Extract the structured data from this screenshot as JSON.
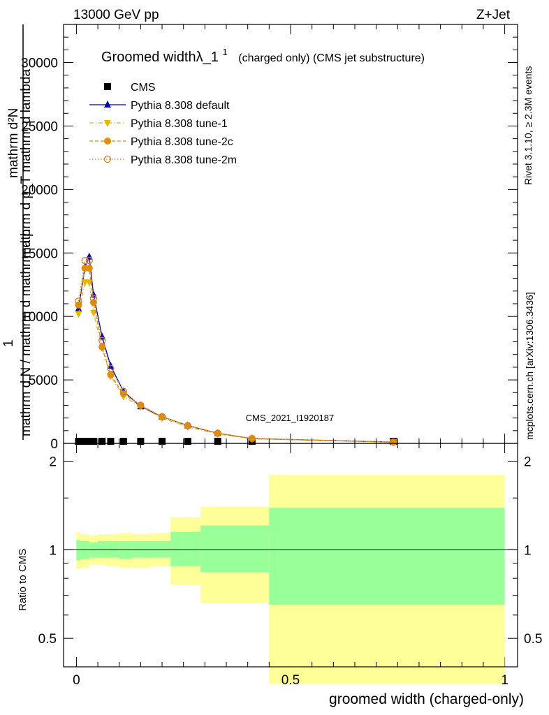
{
  "header": {
    "energy_label": "13000 GeV pp",
    "process_label": "Z+Jet"
  },
  "side_labels": {
    "rivet": "Rivet 3.1.10, ≥ 2.3M events",
    "mcplots": "mcplots.cern.ch [arXiv:1306.3436]"
  },
  "watermark": "CMS_2021_I1920187",
  "title": {
    "main": "Groomed widthλ_1",
    "superscript": "1",
    "suffix": "(charged only) (CMS jet substructure)"
  },
  "axes": {
    "ylabel_top_line1": "mathrm d²N",
    "ylabel_top_line2": "mathrm d p_T mathrm d lambda",
    "ylabel_bottom": "mathrm d N / mathrm d mathrm d p",
    "ylabel_one": "1",
    "ratio_ylabel": "Ratio to CMS",
    "xlabel": "groomed width (charged-only)",
    "main_yticks": [
      "0",
      "5000",
      "10000",
      "15000",
      "20000",
      "25000",
      "30000"
    ],
    "ratio_yticks": [
      "0.5",
      "1",
      "2"
    ],
    "xticks": [
      "0",
      "0.5",
      "1"
    ]
  },
  "legend": [
    {
      "label": "CMS",
      "color": "#000000",
      "marker": "square",
      "line": "none"
    },
    {
      "label": "Pythia 8.308 default",
      "color": "#0000cc",
      "marker": "triangle-up",
      "line": "solid"
    },
    {
      "label": "Pythia 8.308 tune-1",
      "color": "#e8b800",
      "marker": "triangle-down",
      "line": "dashdot"
    },
    {
      "label": "Pythia 8.308 tune-2c",
      "color": "#e09000",
      "marker": "circle",
      "line": "dashed"
    },
    {
      "label": "Pythia 8.308 tune-2m",
      "color": "#d08020",
      "marker": "circle-open",
      "line": "dotted"
    }
  ],
  "chart_data": {
    "type": "line",
    "xlabel": "groomed width (charged-only)",
    "xlim": [
      -0.03,
      1.03
    ],
    "ylim": [
      0,
      33000
    ],
    "ratio_ylim": [
      0.4,
      2.3
    ],
    "ratio_scale": "log",
    "x": [
      0.005,
      0.02,
      0.03,
      0.04,
      0.06,
      0.08,
      0.11,
      0.15,
      0.2,
      0.26,
      0.33,
      0.41,
      0.74
    ],
    "series": [
      {
        "name": "CMS",
        "values": [
          0,
          0,
          0,
          0,
          0,
          0,
          0,
          0,
          0,
          0,
          0,
          0,
          0
        ]
      },
      {
        "name": "Pythia 8.308 default",
        "values": [
          10600,
          13900,
          14700,
          11700,
          8400,
          6100,
          4100,
          2900,
          2100,
          1400,
          800,
          380,
          100
        ]
      },
      {
        "name": "Pythia 8.308 tune-1",
        "values": [
          10200,
          12700,
          12700,
          10300,
          7500,
          5300,
          3700,
          2900,
          2000,
          1300,
          750,
          360,
          100
        ]
      },
      {
        "name": "Pythia 8.308 tune-2c",
        "values": [
          10900,
          13800,
          13800,
          11100,
          7600,
          5400,
          3900,
          3000,
          2100,
          1400,
          800,
          380,
          100
        ]
      },
      {
        "name": "Pythia 8.308 tune-2m",
        "values": [
          11200,
          14400,
          14400,
          11400,
          8100,
          5900,
          4100,
          3000,
          2100,
          1400,
          800,
          380,
          100
        ]
      }
    ],
    "cms_band_edges": [
      0.0,
      0.01,
      0.03,
      0.05,
      0.07,
      0.1,
      0.13,
      0.17,
      0.22,
      0.29,
      0.36,
      0.45,
      0.625,
      1.0
    ],
    "ratio_bins": [
      {
        "x0": 0.0,
        "x1": 0.01,
        "green": [
          0.92,
          1.08
        ],
        "yellow": [
          0.86,
          1.15
        ]
      },
      {
        "x0": 0.01,
        "x1": 0.03,
        "green": [
          0.93,
          1.07
        ],
        "yellow": [
          0.87,
          1.13
        ]
      },
      {
        "x0": 0.03,
        "x1": 0.05,
        "green": [
          0.94,
          1.06
        ],
        "yellow": [
          0.89,
          1.12
        ]
      },
      {
        "x0": 0.05,
        "x1": 0.07,
        "green": [
          0.94,
          1.07
        ],
        "yellow": [
          0.89,
          1.13
        ]
      },
      {
        "x0": 0.07,
        "x1": 0.1,
        "green": [
          0.94,
          1.07
        ],
        "yellow": [
          0.88,
          1.13
        ]
      },
      {
        "x0": 0.1,
        "x1": 0.13,
        "green": [
          0.93,
          1.07
        ],
        "yellow": [
          0.87,
          1.14
        ]
      },
      {
        "x0": 0.13,
        "x1": 0.17,
        "green": [
          0.94,
          1.07
        ],
        "yellow": [
          0.87,
          1.13
        ]
      },
      {
        "x0": 0.17,
        "x1": 0.22,
        "green": [
          0.94,
          1.07
        ],
        "yellow": [
          0.88,
          1.14
        ]
      },
      {
        "x0": 0.22,
        "x1": 0.29,
        "green": [
          0.88,
          1.15
        ],
        "yellow": [
          0.76,
          1.29
        ]
      },
      {
        "x0": 0.29,
        "x1": 0.45,
        "green": [
          0.84,
          1.21
        ],
        "yellow": [
          0.66,
          1.4
        ]
      },
      {
        "x0": 0.45,
        "x1": 1.0,
        "green": [
          0.65,
          1.39
        ],
        "yellow": [
          0.35,
          1.8
        ]
      }
    ]
  }
}
